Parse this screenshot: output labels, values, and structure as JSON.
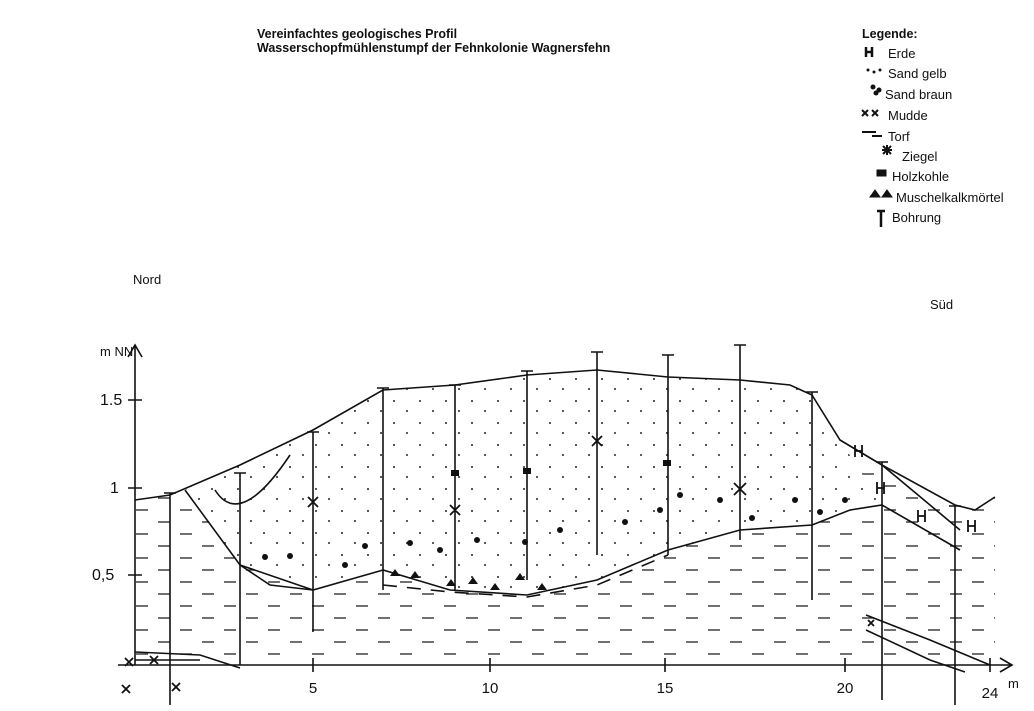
{
  "header": {
    "title": "Vereinfachtes geologisches Profil",
    "subtitle": "Wasserschopfmühlenstumpf der Fehnkolonie Wagnersfehn"
  },
  "legend": {
    "title": "Legende:",
    "items": [
      "Erde",
      "Sand gelb",
      "Sand braun",
      "Mudde",
      "Torf",
      "Ziegel",
      "Holzkohle",
      "Muschelkalkmörtel",
      "Bohrung"
    ]
  },
  "profile": {
    "left_label": "Nord",
    "right_label": "Süd",
    "y_unit": "m NN",
    "x_unit": "m",
    "y_labels": [
      "1.5",
      "1",
      "0,5"
    ],
    "x_labels": [
      "5",
      "10",
      "15",
      "20",
      "24"
    ]
  }
}
